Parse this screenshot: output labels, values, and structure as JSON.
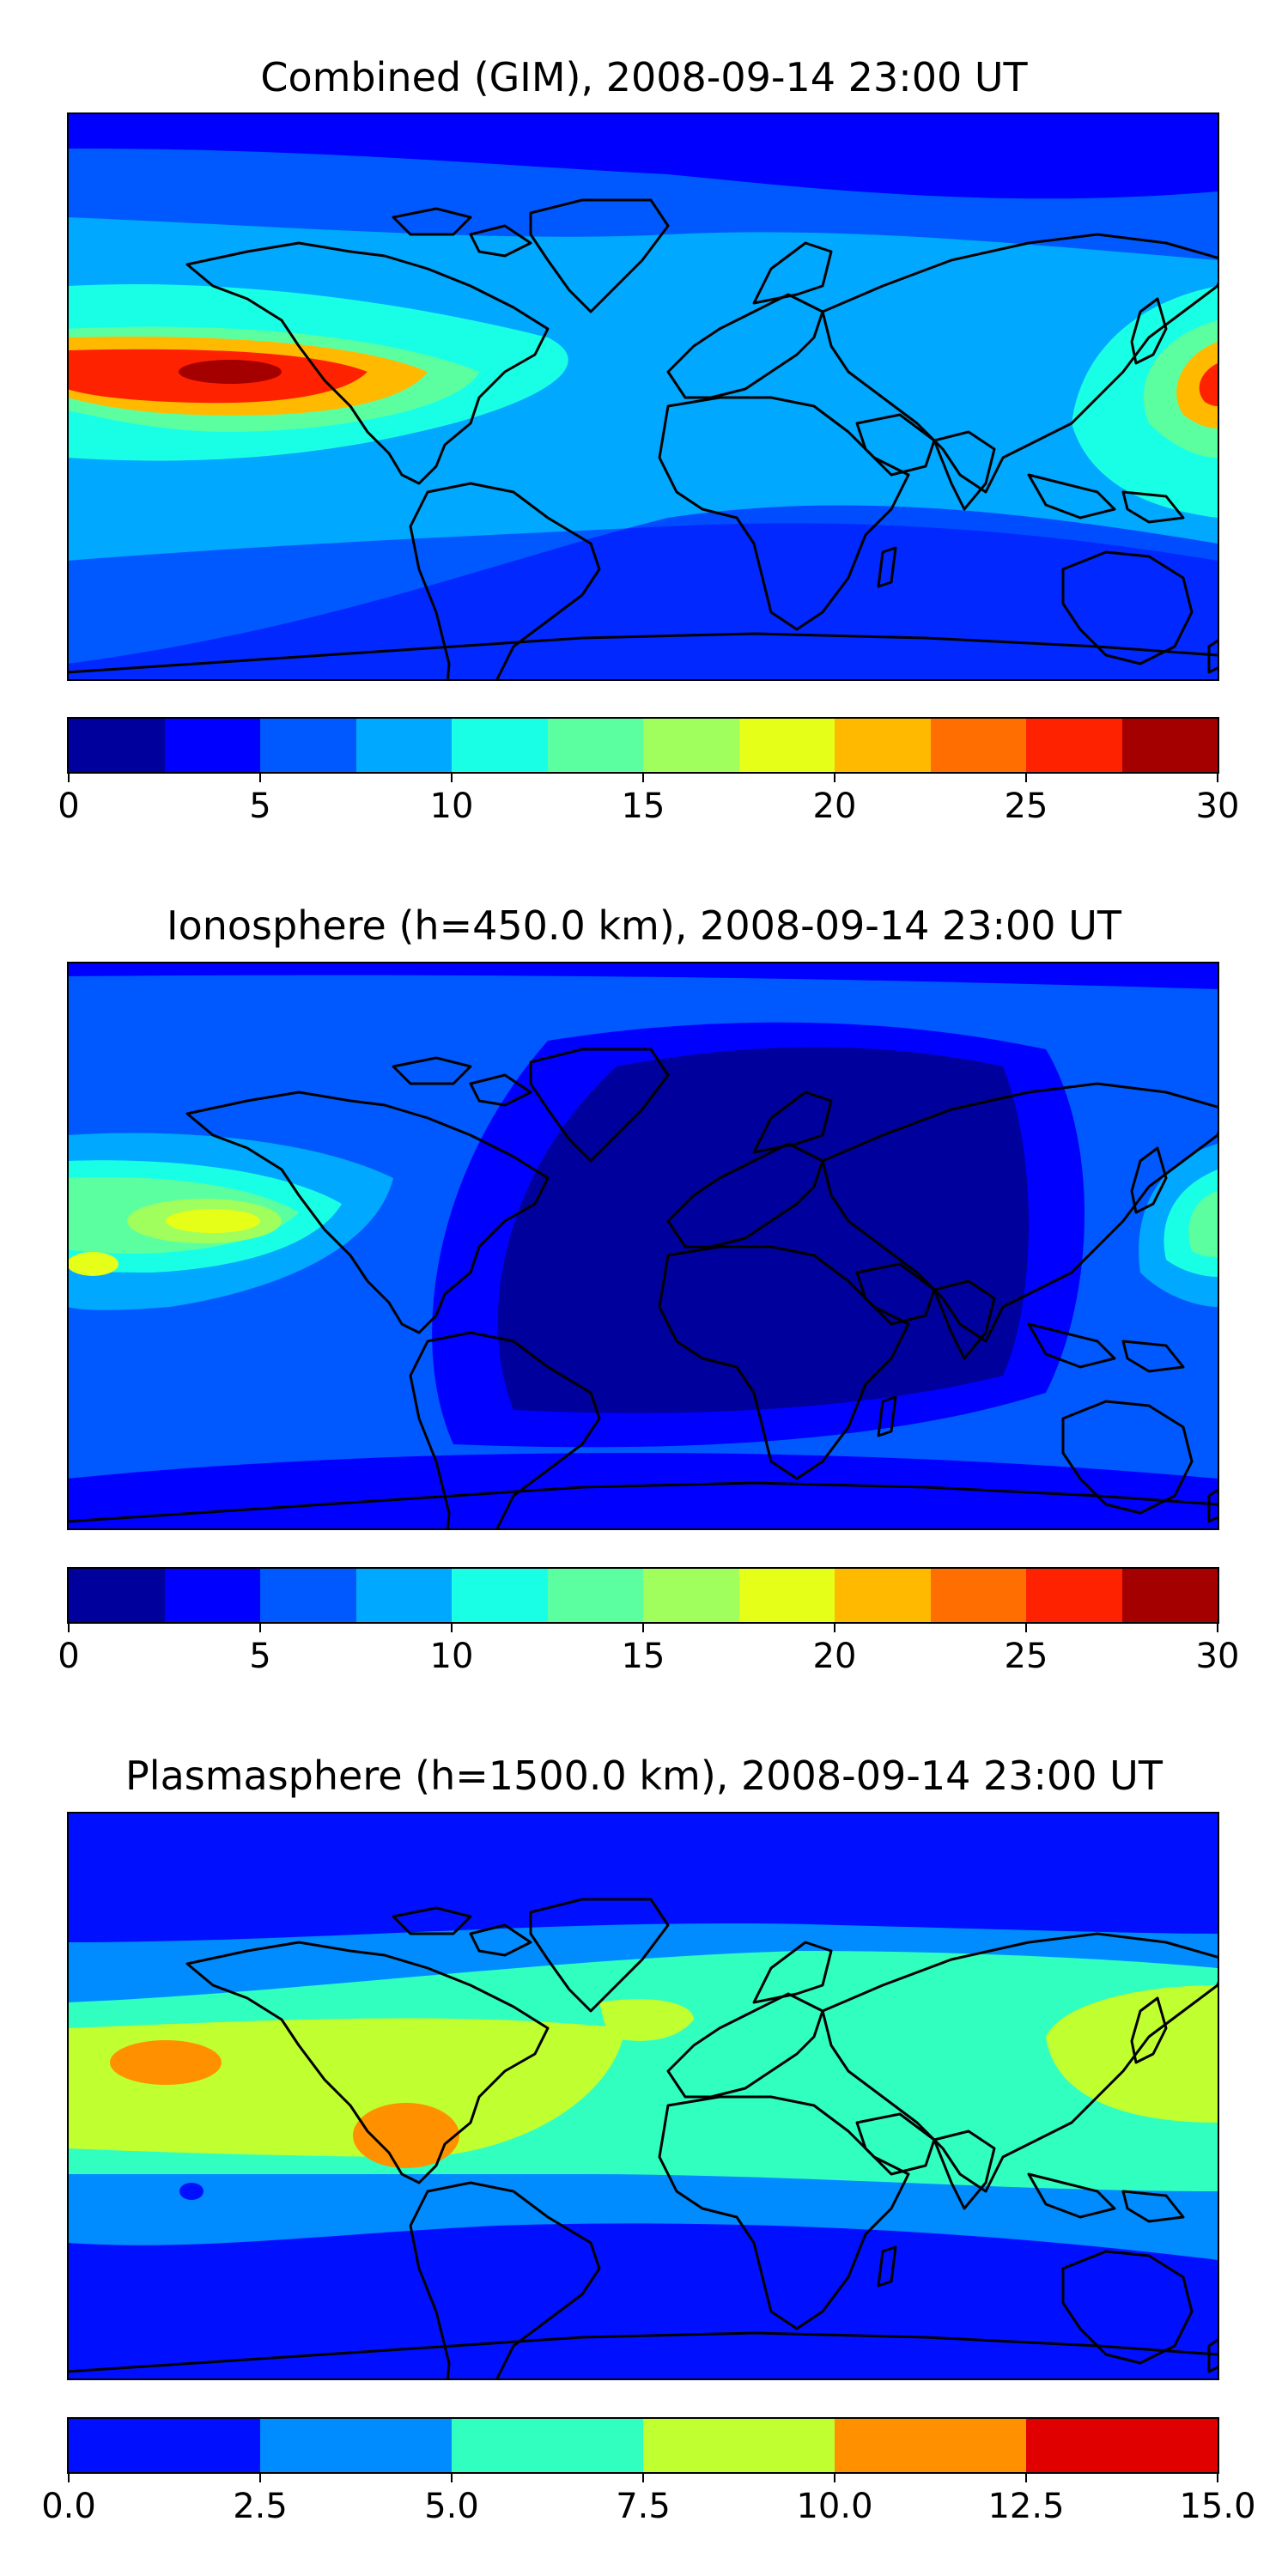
{
  "panels": [
    {
      "title": "Combined (GIM), 2008-09-14 23:00 UT",
      "colorbar": {
        "colors": [
          "#00009c",
          "#0000ff",
          "#0059ff",
          "#00a8ff",
          "#19ffe5",
          "#5cffa0",
          "#a0ff5c",
          "#e5ff19",
          "#ffba00",
          "#ff6e00",
          "#ff2200",
          "#a50000"
        ],
        "ticks": [
          "0",
          "5",
          "10",
          "15",
          "20",
          "25",
          "30"
        ],
        "min": 0,
        "max": 30
      }
    },
    {
      "title": "Ionosphere  (h=450.0 km), 2008-09-14 23:00 UT",
      "colorbar": {
        "colors": [
          "#00009c",
          "#0000ff",
          "#0059ff",
          "#00a8ff",
          "#19ffe5",
          "#5cffa0",
          "#a0ff5c",
          "#e5ff19",
          "#ffba00",
          "#ff6e00",
          "#ff2200",
          "#a50000"
        ],
        "ticks": [
          "0",
          "5",
          "10",
          "15",
          "20",
          "25",
          "30"
        ],
        "min": 0,
        "max": 30
      }
    },
    {
      "title": "Plasmasphere (h=1500.0 km), 2008-09-14 23:00 UT",
      "colorbar": {
        "colors": [
          "#0010ff",
          "#008cff",
          "#30ffc0",
          "#c0ff30",
          "#ff9000",
          "#e00000"
        ],
        "ticks": [
          "0.0",
          "2.5",
          "5.0",
          "7.5",
          "10.0",
          "12.5",
          "15.0"
        ],
        "min": 0,
        "max": 15
      }
    }
  ],
  "chart_data": [
    {
      "type": "heatmap",
      "title": "Combined (GIM), 2008-09-14 23:00 UT",
      "colorbar_range": [
        0,
        30
      ],
      "levels": [
        0,
        2.5,
        5,
        7.5,
        10,
        12.5,
        15,
        17.5,
        20,
        22.5,
        25,
        27.5,
        30
      ]
    },
    {
      "type": "heatmap",
      "title": "Ionosphere  (h=450.0 km), 2008-09-14 23:00 UT",
      "colorbar_range": [
        0,
        30
      ],
      "levels": [
        0,
        2.5,
        5,
        7.5,
        10,
        12.5,
        15,
        17.5,
        20,
        22.5,
        25,
        27.5,
        30
      ]
    },
    {
      "type": "heatmap",
      "title": "Plasmasphere (h=1500.0 km), 2008-09-14 23:00 UT",
      "colorbar_range": [
        0,
        15
      ],
      "levels": [
        0,
        2.5,
        5,
        7.5,
        10,
        12.5,
        15
      ]
    }
  ]
}
